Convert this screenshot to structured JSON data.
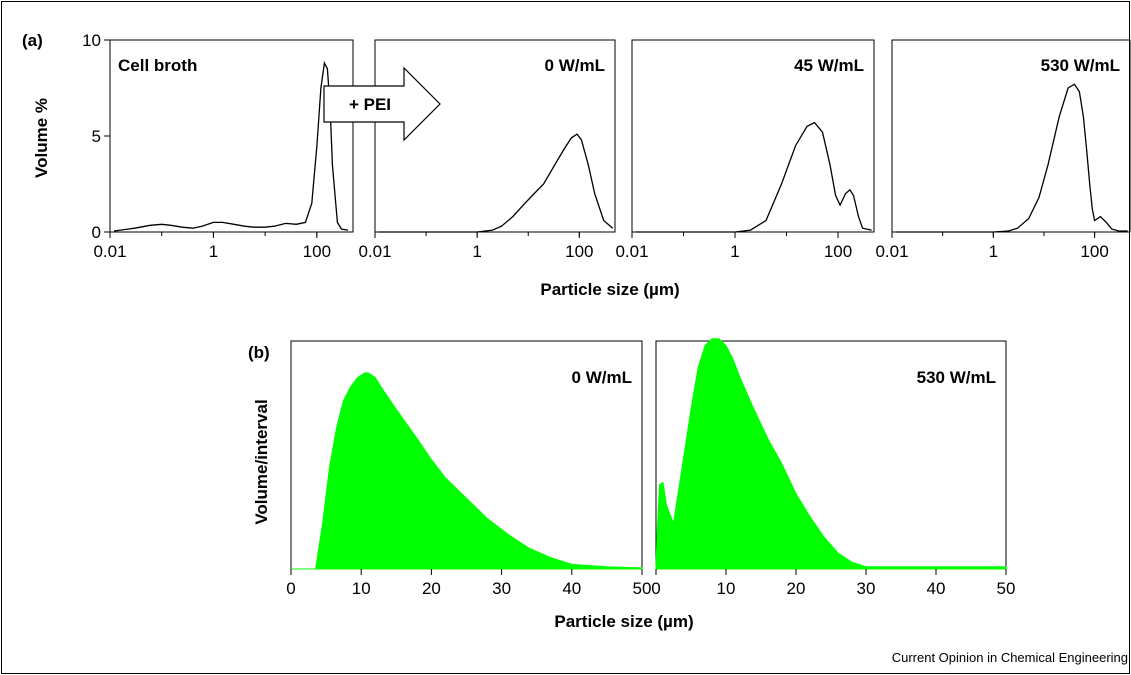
{
  "figure": {
    "credit": "Current Opinion in Chemical Engineering",
    "arrow_label": "+ PEI",
    "panel_a_tag": "(a)",
    "panel_b_tag": "(b)",
    "a_xlabel": "Particle size (µm)",
    "a_ylabel": "Volume %",
    "b_xlabel": "Particle size (µm)",
    "b_ylabel": "Volume/interval"
  },
  "chart_data": [
    {
      "type": "line",
      "title": "Cell broth",
      "x_scale": "log",
      "xlim": [
        0.01,
        500
      ],
      "ylim": [
        0,
        10
      ],
      "x_ticks": [
        {
          "v": 0.01,
          "label": "0.01"
        },
        {
          "v": 1,
          "label": "1"
        },
        {
          "v": 100,
          "label": "100"
        }
      ],
      "y_ticks": [
        {
          "v": 0,
          "label": "0"
        },
        {
          "v": 5,
          "label": "5"
        },
        {
          "v": 10,
          "label": "10"
        }
      ],
      "x": [
        0.012,
        0.03,
        0.06,
        0.1,
        0.15,
        0.25,
        0.4,
        0.6,
        1,
        1.5,
        2.5,
        4,
        6,
        10,
        15,
        25,
        40,
        60,
        80,
        100,
        120,
        140,
        160,
        180,
        200,
        250,
        300,
        400
      ],
      "y": [
        0.05,
        0.2,
        0.35,
        0.4,
        0.35,
        0.25,
        0.2,
        0.3,
        0.5,
        0.5,
        0.4,
        0.3,
        0.25,
        0.25,
        0.3,
        0.45,
        0.4,
        0.5,
        1.5,
        4.5,
        7.5,
        8.8,
        8.5,
        6.5,
        3.5,
        0.5,
        0.15,
        0.1
      ]
    },
    {
      "type": "line",
      "title": "0 W/mL",
      "x_scale": "log",
      "xlim": [
        0.01,
        500
      ],
      "ylim": [
        0,
        10
      ],
      "x_ticks": [
        {
          "v": 0.01,
          "label": "0.01"
        },
        {
          "v": 1,
          "label": "1"
        },
        {
          "v": 100,
          "label": "100"
        }
      ],
      "y_ticks": [],
      "x": [
        0.012,
        1,
        2,
        3,
        5,
        8,
        12,
        20,
        30,
        50,
        70,
        90,
        110,
        150,
        200,
        300,
        450
      ],
      "y": [
        0,
        0,
        0.1,
        0.3,
        0.8,
        1.4,
        1.9,
        2.5,
        3.3,
        4.3,
        4.9,
        5.1,
        4.8,
        3.5,
        2.0,
        0.6,
        0.2
      ]
    },
    {
      "type": "line",
      "title": "45 W/mL",
      "x_scale": "log",
      "xlim": [
        0.01,
        500
      ],
      "ylim": [
        0,
        10
      ],
      "x_ticks": [
        {
          "v": 0.01,
          "label": "0.01"
        },
        {
          "v": 1,
          "label": "1"
        },
        {
          "v": 100,
          "label": "100"
        }
      ],
      "y_ticks": [],
      "x": [
        0.012,
        1,
        2,
        4,
        8,
        15,
        25,
        35,
        50,
        70,
        90,
        110,
        140,
        170,
        200,
        250,
        300,
        450
      ],
      "y": [
        0,
        0,
        0.1,
        0.6,
        2.5,
        4.5,
        5.5,
        5.7,
        5.2,
        3.5,
        1.9,
        1.4,
        2.0,
        2.2,
        1.9,
        0.8,
        0.2,
        0.1
      ]
    },
    {
      "type": "line",
      "title": "530 W/mL",
      "x_scale": "log",
      "xlim": [
        0.01,
        500
      ],
      "ylim": [
        0,
        10
      ],
      "x_ticks": [
        {
          "v": 0.01,
          "label": "0.01"
        },
        {
          "v": 1,
          "label": "1"
        },
        {
          "v": 100,
          "label": "100"
        }
      ],
      "y_ticks": [],
      "x": [
        0.012,
        1,
        2,
        3,
        5,
        8,
        12,
        20,
        30,
        40,
        50,
        60,
        70,
        80,
        90,
        100,
        130,
        170,
        220,
        300,
        450
      ],
      "y": [
        0,
        0,
        0.05,
        0.2,
        0.7,
        1.8,
        3.5,
        6.0,
        7.5,
        7.7,
        7.3,
        6.0,
        4.2,
        2.5,
        1.2,
        0.6,
        0.8,
        0.5,
        0.15,
        0.05,
        0.05
      ]
    },
    {
      "type": "area",
      "title": "0 W/mL",
      "x_scale": "linear",
      "xlim": [
        0,
        50
      ],
      "ylim": [
        0,
        100
      ],
      "x_ticks": [
        {
          "v": 0,
          "label": "0"
        },
        {
          "v": 10,
          "label": "10"
        },
        {
          "v": 20,
          "label": "20"
        },
        {
          "v": 30,
          "label": "30"
        },
        {
          "v": 40,
          "label": "40"
        },
        {
          "v": 50,
          "label": "50"
        }
      ],
      "color": "#00ff00",
      "x": [
        0,
        3.5,
        4.5,
        5.5,
        6.5,
        7.5,
        8.5,
        9.5,
        10.5,
        11,
        12,
        13,
        15,
        18,
        20,
        22,
        25,
        28,
        31,
        34,
        37,
        40,
        45,
        50
      ],
      "y": [
        0,
        0,
        20,
        45,
        62,
        74,
        80,
        84,
        86,
        86,
        84,
        79,
        70,
        57,
        48,
        40,
        31,
        22,
        15,
        9,
        5,
        2,
        1,
        0.5
      ]
    },
    {
      "type": "area",
      "title": "530 W/mL",
      "x_scale": "linear",
      "xlim": [
        0,
        50
      ],
      "ylim": [
        0,
        100
      ],
      "x_ticks": [
        {
          "v": 0,
          "label": "0"
        },
        {
          "v": 10,
          "label": "10"
        },
        {
          "v": 20,
          "label": "20"
        },
        {
          "v": 30,
          "label": "30"
        },
        {
          "v": 40,
          "label": "40"
        },
        {
          "v": 50,
          "label": "50"
        }
      ],
      "color": "#00ff00",
      "x": [
        0,
        0.2,
        0.5,
        1,
        1.5,
        2.5,
        3.5,
        5,
        6,
        7,
        8,
        9,
        10,
        11,
        12,
        14,
        16,
        18,
        20,
        22,
        24,
        26,
        28,
        30,
        35,
        40,
        50
      ],
      "y": [
        2,
        18,
        37,
        38,
        28,
        20,
        40,
        70,
        88,
        98,
        101,
        101,
        98,
        92,
        84,
        70,
        57,
        46,
        33,
        23,
        14,
        7,
        3,
        1,
        1,
        1,
        1
      ]
    }
  ]
}
